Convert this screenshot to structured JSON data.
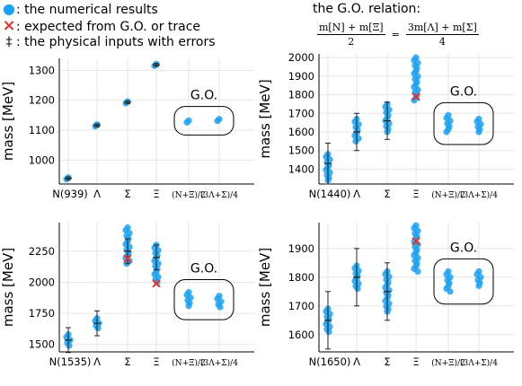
{
  "legend": {
    "items": [
      {
        "symbol": "●",
        "color": "#1ba1f2",
        "label": "the numerical results"
      },
      {
        "symbol": "×",
        "color": "#e3342f",
        "label": "expected from G.O. or trace"
      },
      {
        "symbol": "‡",
        "color": "#222222",
        "label": "the physical inputs with errors"
      }
    ]
  },
  "relation": {
    "title": "the G.O. relation:",
    "lhs_num": "m[N] + m[Ξ]",
    "lhs_den": "2",
    "equals": "=",
    "rhs_num": "3m[Λ] + m[Σ]",
    "rhs_den": "4"
  },
  "colors": {
    "point": "#1ba1f2",
    "expected": "#e3342f",
    "error": "#222222",
    "grid": "#e6e6e6"
  },
  "chart_data": [
    {
      "type": "scatter",
      "ylabel": "mass [MeV]",
      "categories": [
        "N(939)",
        "Λ",
        "Σ",
        "Ξ",
        "(N+Ξ)/2",
        "(3Λ+Σ)/4"
      ],
      "yticks": [
        1000,
        1100,
        1200,
        1300
      ],
      "ylim": [
        920,
        1340
      ],
      "go_label": "G.O.",
      "physical": [
        {
          "cat": 0,
          "value": 939,
          "err": 5
        },
        {
          "cat": 1,
          "value": 1116,
          "err": 5
        },
        {
          "cat": 2,
          "value": 1193,
          "err": 5
        },
        {
          "cat": 3,
          "value": 1318,
          "err": 5
        }
      ],
      "results": [
        {
          "cat": 0,
          "min": 936,
          "max": 942
        },
        {
          "cat": 1,
          "min": 1113,
          "max": 1119
        },
        {
          "cat": 2,
          "min": 1190,
          "max": 1196
        },
        {
          "cat": 3,
          "min": 1315,
          "max": 1321
        },
        {
          "cat": 4,
          "min": 1126,
          "max": 1132
        },
        {
          "cat": 5,
          "min": 1131,
          "max": 1137
        }
      ],
      "expected": []
    },
    {
      "type": "scatter",
      "ylabel": "mass [MeV]",
      "categories": [
        "N(1440)",
        "Λ",
        "Σ",
        "Ξ",
        "(N+Ξ)/2",
        "(3Λ+Σ)/4"
      ],
      "yticks": [
        1400,
        1500,
        1600,
        1700,
        1800,
        1900,
        2000
      ],
      "ylim": [
        1320,
        2020
      ],
      "go_label": "G.O.",
      "physical": [
        {
          "cat": 0,
          "value": 1430,
          "err": 110
        },
        {
          "cat": 1,
          "value": 1600,
          "err": 100
        },
        {
          "cat": 2,
          "value": 1660,
          "err": 100
        }
      ],
      "results": [
        {
          "cat": 0,
          "min": 1340,
          "max": 1480
        },
        {
          "cat": 1,
          "min": 1550,
          "max": 1670
        },
        {
          "cat": 2,
          "min": 1600,
          "max": 1750
        },
        {
          "cat": 3,
          "min": 1770,
          "max": 2000
        },
        {
          "cat": 4,
          "min": 1600,
          "max": 1690
        },
        {
          "cat": 5,
          "min": 1600,
          "max": 1670
        }
      ],
      "expected": [
        {
          "cat": 3,
          "value": 1790
        }
      ]
    },
    {
      "type": "scatter",
      "ylabel": "mass [MeV]",
      "categories": [
        "N(1535)",
        "Λ",
        "Σ",
        "Ξ",
        "(N+Ξ)/2",
        "(3Λ+Σ)/4"
      ],
      "yticks": [
        1500,
        1750,
        2000,
        2250
      ],
      "ylim": [
        1440,
        2480
      ],
      "go_label": "G.O.",
      "physical": [
        {
          "cat": 0,
          "value": 1535,
          "err": 100
        },
        {
          "cat": 1,
          "value": 1670,
          "err": 100
        },
        {
          "cat": 2,
          "value": 2250,
          "err": 100
        },
        {
          "cat": 3,
          "value": 2200,
          "err": 100
        }
      ],
      "results": [
        {
          "cat": 0,
          "min": 1490,
          "max": 1580
        },
        {
          "cat": 1,
          "min": 1630,
          "max": 1710
        },
        {
          "cat": 2,
          "min": 2150,
          "max": 2440
        },
        {
          "cat": 3,
          "min": 2000,
          "max": 2300
        },
        {
          "cat": 4,
          "min": 1810,
          "max": 1920
        },
        {
          "cat": 5,
          "min": 1800,
          "max": 1890
        }
      ],
      "expected": [
        {
          "cat": 2,
          "value": 2190
        },
        {
          "cat": 3,
          "value": 1990
        }
      ]
    },
    {
      "type": "scatter",
      "ylabel": "mass [MeV]",
      "categories": [
        "N(1650)",
        "Λ",
        "Σ",
        "Ξ",
        "(N+Ξ)/2",
        "(3Λ+Σ)/4"
      ],
      "yticks": [
        1600,
        1700,
        1800,
        1900
      ],
      "ylim": [
        1540,
        1990
      ],
      "go_label": "G.O.",
      "physical": [
        {
          "cat": 0,
          "value": 1650,
          "err": 100
        },
        {
          "cat": 1,
          "value": 1800,
          "err": 100
        },
        {
          "cat": 2,
          "value": 1750,
          "err": 100
        }
      ],
      "results": [
        {
          "cat": 0,
          "min": 1610,
          "max": 1690
        },
        {
          "cat": 1,
          "min": 1760,
          "max": 1840
        },
        {
          "cat": 2,
          "min": 1680,
          "max": 1820
        },
        {
          "cat": 3,
          "min": 1820,
          "max": 1980
        },
        {
          "cat": 4,
          "min": 1750,
          "max": 1820
        },
        {
          "cat": 5,
          "min": 1770,
          "max": 1820
        }
      ],
      "expected": [
        {
          "cat": 3,
          "value": 1925
        }
      ]
    }
  ]
}
